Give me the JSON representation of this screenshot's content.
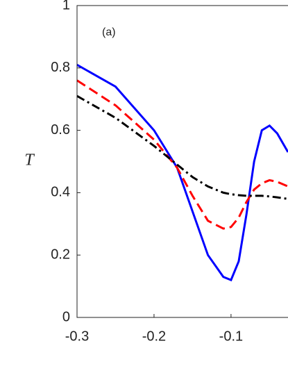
{
  "chart_data": {
    "type": "line",
    "y_label": "T",
    "annotation": "(a)",
    "xlim": [
      -0.3,
      -0.026
    ],
    "xticks": [
      -0.3,
      -0.2,
      -0.1
    ],
    "ylim": [
      0,
      1
    ],
    "yticks": [
      0,
      0.2,
      0.4,
      0.6,
      0.8,
      1
    ],
    "x": [
      -0.3,
      -0.25,
      -0.2,
      -0.17,
      -0.15,
      -0.13,
      -0.11,
      -0.1,
      -0.09,
      -0.08,
      -0.07,
      -0.06,
      -0.05,
      -0.04,
      -0.026
    ],
    "series": [
      {
        "color": "#0000ff",
        "style": "solid",
        "values": [
          0.81,
          0.74,
          0.6,
          0.48,
          0.34,
          0.2,
          0.13,
          0.12,
          0.18,
          0.33,
          0.5,
          0.6,
          0.615,
          0.59,
          0.53
        ]
      },
      {
        "color": "#ff0000",
        "style": "dashed",
        "values": [
          0.76,
          0.68,
          0.57,
          0.48,
          0.39,
          0.31,
          0.285,
          0.29,
          0.32,
          0.37,
          0.41,
          0.43,
          0.44,
          0.435,
          0.42
        ]
      },
      {
        "color": "#000000",
        "style": "dashdot",
        "values": [
          0.71,
          0.64,
          0.55,
          0.49,
          0.45,
          0.42,
          0.4,
          0.395,
          0.392,
          0.39,
          0.39,
          0.39,
          0.388,
          0.385,
          0.38
        ]
      }
    ]
  }
}
